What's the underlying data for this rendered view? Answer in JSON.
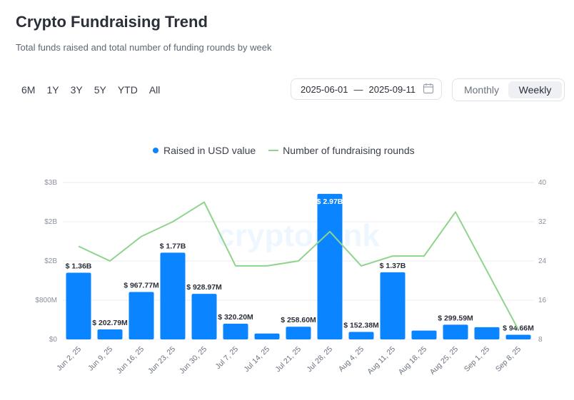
{
  "header": {
    "title": "Crypto Fundraising Trend",
    "subtitle": "Total funds raised and total number of funding rounds by week"
  },
  "ranges": [
    "6M",
    "1Y",
    "3Y",
    "5Y",
    "YTD",
    "All"
  ],
  "date_range": {
    "start": "2025-06-01",
    "separator": "—",
    "end": "2025-09-11"
  },
  "period": {
    "options": [
      "Monthly",
      "Weekly"
    ],
    "selected": "Weekly"
  },
  "watermark": "cryptorank",
  "colors": {
    "bar": "#0a84ff",
    "line": "#8fd48c",
    "grid": "#eceef2"
  },
  "chart_data": {
    "type": "bar",
    "categories": [
      "Jun 2, 25",
      "Jun 9, 25",
      "Jun 16, 25",
      "Jun 23, 25",
      "Jun 30, 25",
      "Jul 7, 25",
      "Jul 14, 25",
      "Jul 21, 25",
      "Jul 28, 25",
      "Aug 4, 25",
      "Aug 11, 25",
      "Aug 18, 25",
      "Aug 25, 25",
      "Sep 1, 25",
      "Sep 8, 25"
    ],
    "series": [
      {
        "name": "Raised in USD value",
        "type": "bar",
        "axis": "left",
        "values": [
          1.36,
          0.20279,
          0.96777,
          1.77,
          0.92897,
          0.3202,
          0.12,
          0.2586,
          2.97,
          0.15238,
          1.37,
          0.18,
          0.29959,
          0.25,
          0.09466
        ],
        "labels": [
          "$ 1.36B",
          "$ 202.79M",
          "$ 967.77M",
          "$ 1.77B",
          "$ 928.97M",
          "$ 320.20M",
          "",
          "$ 258.60M",
          "$ 2.97B",
          "$ 152.38M",
          "$ 1.37B",
          "",
          "$ 299.59M",
          "",
          "$ 94.66M"
        ]
      },
      {
        "name": "Number of fundraising rounds",
        "type": "line",
        "axis": "right",
        "values": [
          27,
          24,
          29,
          32,
          36,
          23,
          23,
          24,
          30,
          23,
          25,
          25,
          34,
          22,
          10
        ]
      }
    ],
    "y_left": {
      "ticks": [
        "$0",
        "$800M",
        "$2B",
        "$2B",
        "$3B"
      ],
      "max": 3.2
    },
    "y_right": {
      "ticks": [
        "8",
        "16",
        "24",
        "32",
        "40"
      ],
      "min": 8,
      "max": 40
    },
    "legend_position": "top-center",
    "grid": true
  }
}
